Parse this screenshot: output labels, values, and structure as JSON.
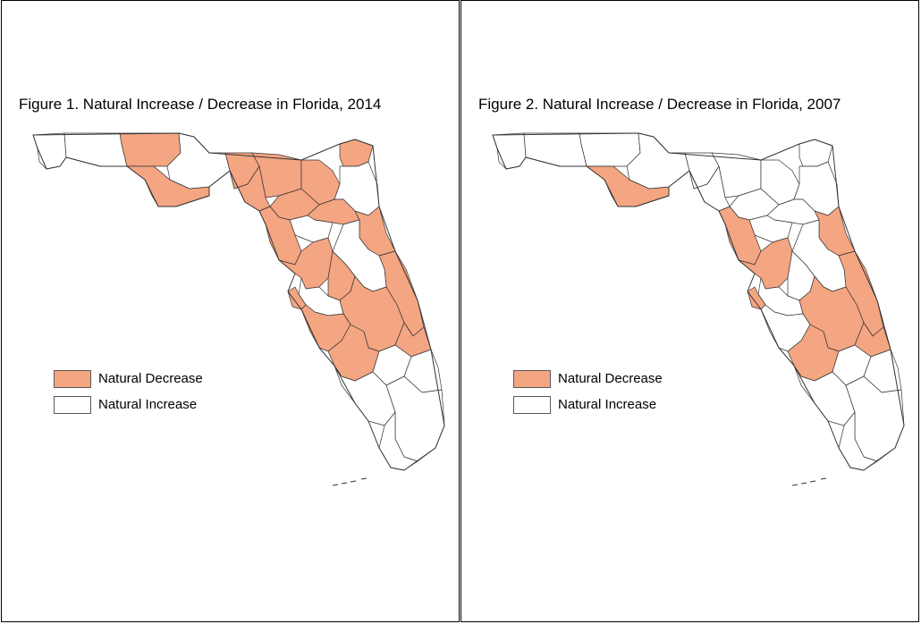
{
  "colors": {
    "decrease": "#f4a582",
    "increase": "#ffffff",
    "border": "#333333"
  },
  "legend": {
    "decrease_label": "Natural Decrease",
    "increase_label": "Natural Increase"
  },
  "maps": [
    {
      "title": "Figure 1. Natural Increase / Decrease in Florida, 2014",
      "year": "2014",
      "decrease_regions": [
        "panhandle-central-north",
        "panhandle-bay-gulf",
        "nw-big-bend-1",
        "nw-big-bend-2",
        "nw-big-bend-3",
        "ne-nassau",
        "ne-interior",
        "north-central-block",
        "north-central-2",
        "nature-coast",
        "central-west-coast",
        "st-johns-flagler",
        "volusia-brevard",
        "indian-river-stlucie",
        "central-interior",
        "polk-highlands",
        "charlotte-desoto",
        "sarasota-lee",
        "pinellas-pasco"
      ],
      "increase_regions": [
        "panhandle-west",
        "panhandle-walton",
        "tallahassee",
        "jacksonville",
        "alachua",
        "orlando",
        "hillsborough",
        "south-central",
        "palm-beach",
        "broward-miami",
        "collier",
        "monroe-keys"
      ]
    },
    {
      "title": "Figure 2. Natural Increase / Decrease in Florida, 2007",
      "year": "2007",
      "decrease_regions": [
        "panhandle-bay-gulf",
        "nature-coast",
        "central-west-coast",
        "st-johns-flagler",
        "volusia-brevard",
        "indian-river-stlucie",
        "polk-highlands",
        "charlotte-desoto",
        "pinellas-pasco"
      ],
      "increase_regions": [
        "panhandle-west",
        "panhandle-walton",
        "panhandle-central-north",
        "tallahassee",
        "nw-big-bend-1",
        "nw-big-bend-2",
        "nw-big-bend-3",
        "ne-nassau",
        "ne-interior",
        "jacksonville",
        "north-central-block",
        "north-central-2",
        "alachua",
        "orlando",
        "hillsborough",
        "central-interior",
        "sarasota-lee",
        "south-central",
        "palm-beach",
        "broward-miami",
        "collier",
        "monroe-keys"
      ]
    }
  ]
}
